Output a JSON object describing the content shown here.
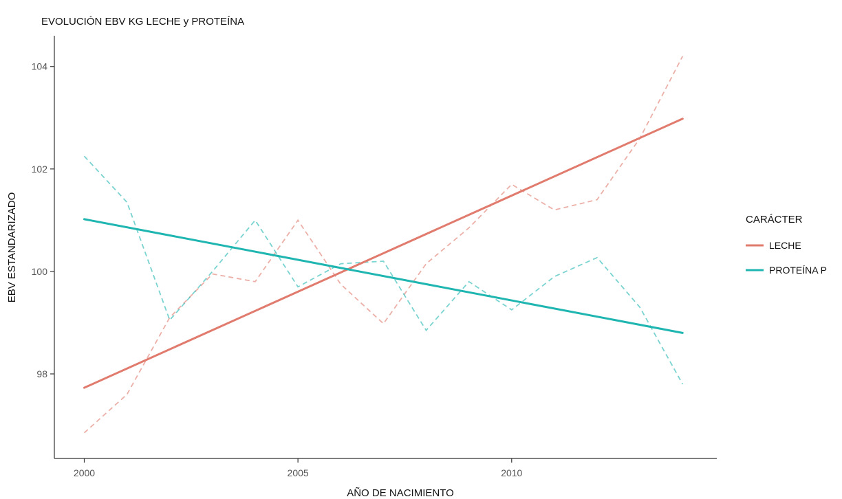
{
  "chart_data": {
    "type": "line",
    "title": "EVOLUCIÓN EBV KG LECHE y PROTEÍNA",
    "xlabel": "AÑO DE NACIMIENTO",
    "ylabel": "EBV ESTANDARIZADO",
    "xlim": [
      1999.3,
      2014.8
    ],
    "ylim": [
      96.35,
      104.6
    ],
    "x_ticks": [
      2000,
      2005,
      2010
    ],
    "y_ticks": [
      98,
      100,
      102,
      104
    ],
    "grid": false,
    "legend": {
      "title": "CARÁCTER",
      "position": "right"
    },
    "series": [
      {
        "name": "LECHE",
        "color": "#E07B6E",
        "raw": {
          "x": [
            2000,
            2001,
            2002,
            2003,
            2004,
            2005,
            2006,
            2007,
            2008,
            2009,
            2010,
            2011,
            2012,
            2013,
            2014
          ],
          "y": [
            96.85,
            97.6,
            99.1,
            99.95,
            99.8,
            101.0,
            99.75,
            98.98,
            100.15,
            100.85,
            101.7,
            101.2,
            101.4,
            102.6,
            104.2
          ]
        },
        "trend": {
          "x": [
            2000,
            2014
          ],
          "y": [
            97.73,
            102.98
          ]
        }
      },
      {
        "name": "PROTEÍNA P",
        "color": "#1FB5B0",
        "raw": {
          "x": [
            2000,
            2001,
            2002,
            2003,
            2004,
            2005,
            2006,
            2007,
            2008,
            2009,
            2010,
            2011,
            2012,
            2013,
            2014
          ],
          "y": [
            102.25,
            101.35,
            99.05,
            100.0,
            101.0,
            99.7,
            100.15,
            100.2,
            98.85,
            99.8,
            99.25,
            99.9,
            100.27,
            99.3,
            97.8
          ]
        },
        "trend": {
          "x": [
            2000,
            2014
          ],
          "y": [
            101.02,
            98.8
          ]
        }
      }
    ]
  }
}
